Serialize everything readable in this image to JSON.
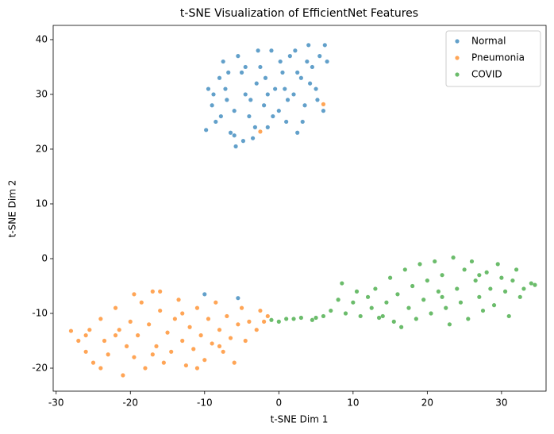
{
  "chart_data": {
    "type": "scatter",
    "title": "t-SNE Visualization of EfficientNet Features",
    "x_label": "t-SNE Dim 1",
    "y_label": "t-SNE Dim 2",
    "xlim": [
      -30.4,
      36.0
    ],
    "ylim": [
      -24.2,
      42.6
    ],
    "xticks": [
      -30,
      -20,
      -10,
      0,
      10,
      20,
      30
    ],
    "yticks": [
      -20,
      -10,
      0,
      10,
      20,
      30,
      40
    ],
    "grid": false,
    "legend": "upper right",
    "series": [
      {
        "name": "Normal",
        "color": "#1f77b4",
        "x": [
          -9.5,
          -9,
          -8.5,
          -8,
          -7.5,
          -7,
          -6.5,
          -6,
          -5.5,
          -5,
          -4.5,
          -4,
          -3.5,
          -3,
          -2.5,
          -2,
          -1.5,
          -1,
          -0.5,
          0,
          0.5,
          1,
          1.5,
          2,
          2.5,
          3,
          3.5,
          4,
          4.5,
          5,
          5.5,
          6,
          6.5,
          -9.8,
          -8.8,
          -7.8,
          -6.8,
          -5.8,
          -4.8,
          -3.8,
          -2.8,
          -1.8,
          -0.8,
          0.2,
          1.2,
          2.2,
          3.2,
          4.2,
          5.2,
          6.2,
          -7.2,
          -3.2,
          0.8,
          3.8,
          -10,
          -5.5,
          -4.5,
          -1.5,
          2.5,
          -6
        ],
        "y": [
          31,
          28,
          25,
          33,
          36,
          29,
          23,
          27,
          37,
          34,
          30,
          26,
          22,
          32,
          35,
          28,
          24,
          38,
          31,
          27,
          34,
          25,
          37,
          30,
          23,
          33,
          28,
          39,
          35,
          31,
          37,
          27,
          36,
          23.5,
          30,
          26,
          34,
          20.5,
          21.5,
          29,
          38,
          33,
          26,
          36,
          29,
          38,
          25,
          32,
          29,
          39,
          31,
          24,
          31,
          36,
          -6.5,
          -7.2,
          35,
          30,
          34,
          22.5
        ]
      },
      {
        "name": "Pneumonia",
        "color": "#ff7f0e",
        "x": [
          -28,
          -27,
          -26,
          -25.5,
          -25,
          -24,
          -23.5,
          -23,
          -22,
          -21.5,
          -21,
          -20.5,
          -20,
          -19.5,
          -19,
          -18.5,
          -18,
          -17.5,
          -17,
          -16.5,
          -16,
          -15.5,
          -15,
          -14.5,
          -14,
          -13.5,
          -13,
          -12.5,
          -12,
          -11.5,
          -11,
          -10.5,
          -10,
          -9.5,
          -9,
          -8.5,
          -8,
          -7.5,
          -7,
          -6.5,
          -6,
          -5.5,
          -5,
          -4.5,
          -4,
          -3,
          -2.5,
          -2,
          -1.5,
          -19.5,
          -24,
          -22,
          -16,
          -11,
          -8,
          6,
          -2.5,
          -26,
          -13,
          -17
        ],
        "y": [
          -13.2,
          -15,
          -17,
          -13,
          -19,
          -11,
          -15,
          -17.5,
          -9,
          -13,
          -21.3,
          -16,
          -11.5,
          -18,
          -14,
          -8,
          -20,
          -12,
          -6,
          -16,
          -9.5,
          -19,
          -13.5,
          -17,
          -11,
          -7.5,
          -15,
          -19.5,
          -12.5,
          -16.5,
          -9,
          -14,
          -18.5,
          -11,
          -15.5,
          -8,
          -13,
          -17,
          -10.5,
          -14.5,
          -19,
          -12,
          -9,
          -15,
          -11.5,
          -13,
          -9.5,
          -11.5,
          -10.5,
          -6.5,
          -20,
          -14,
          -6,
          -20,
          -16,
          28.2,
          23.2,
          -14,
          -10,
          -17.5
        ]
      },
      {
        "name": "COVID",
        "color": "#2ca02c",
        "x": [
          0,
          1,
          2,
          3,
          4.5,
          6,
          7,
          8,
          8.5,
          9,
          10,
          10.5,
          11,
          12,
          12.5,
          13,
          14,
          14.5,
          15,
          15.5,
          16,
          16.5,
          17,
          17.5,
          18,
          18.5,
          19,
          19.5,
          20,
          20.5,
          21,
          21.5,
          22,
          22.5,
          23,
          23.5,
          24,
          24.5,
          25,
          25.5,
          26,
          26.5,
          27,
          27.5,
          28,
          28.5,
          29,
          29.5,
          30,
          30.5,
          31,
          31.5,
          32,
          32.5,
          33,
          34,
          34.5,
          -1,
          5,
          13.5,
          22,
          27
        ],
        "y": [
          -11.5,
          -11,
          -11,
          -10.8,
          -11.2,
          -10.5,
          -9.5,
          -7.5,
          -4.5,
          -10,
          -8,
          -6,
          -10.5,
          -7,
          -9,
          -5.5,
          -10.5,
          -8,
          -3.5,
          -11.5,
          -6.5,
          -12.5,
          -2,
          -9,
          -5,
          -11,
          -1,
          -7.5,
          -4,
          -10,
          -0.5,
          -6,
          -3,
          -9,
          -12,
          0.2,
          -5.5,
          -8,
          -2,
          -11,
          -0.5,
          -4,
          -7,
          -9.5,
          -2.5,
          -5.5,
          -8.5,
          -1,
          -3.5,
          -6,
          -10.5,
          -4,
          -2,
          -7,
          -5.5,
          -4.5,
          -4.8,
          -11.2,
          -10.8,
          -10.8,
          -7,
          -3
        ]
      }
    ]
  }
}
